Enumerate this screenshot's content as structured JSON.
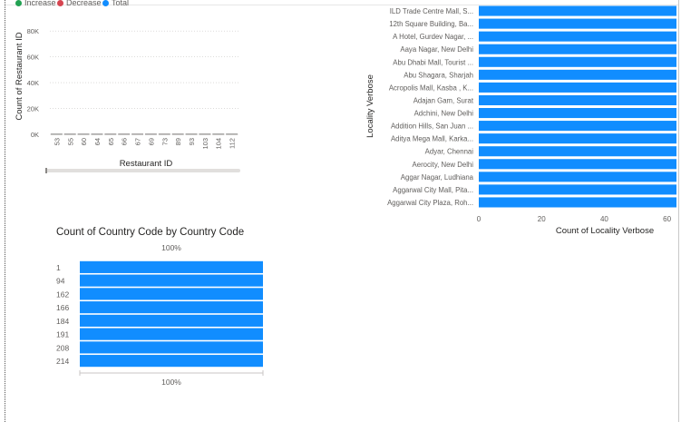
{
  "colors": {
    "increase": "#22a152",
    "decrease": "#d64550",
    "total": "#118dff",
    "bar": "#118dff",
    "grid": "#c8c6c4",
    "text": "#605e5c",
    "title": "#252423"
  },
  "chart_data": [
    {
      "type": "bar",
      "subtype": "waterfall",
      "title": "",
      "legend": {
        "position": "top-left",
        "entries": [
          "Increase",
          "Decrease",
          "Total"
        ]
      },
      "xlabel": "Restaurant ID",
      "ylabel": "Count of Restaurant ID",
      "categories": [
        "53",
        "55",
        "60",
        "64",
        "65",
        "66",
        "67",
        "69",
        "73",
        "89",
        "93",
        "103",
        "104",
        "112"
      ],
      "values": [
        1,
        1,
        1,
        1,
        1,
        1,
        1,
        1,
        1,
        1,
        1,
        1,
        1,
        1
      ],
      "yticks": [
        "0K",
        "20K",
        "40K",
        "60K",
        "80K"
      ],
      "ylim": [
        0,
        90000
      ],
      "grid": true
    },
    {
      "type": "bar",
      "orientation": "horizontal",
      "title": "",
      "xlabel": "Count of Locality Verbose",
      "ylabel": "Locality Verbose",
      "categories": [
        "ILD Trade Centre Mall, S...",
        "12th Square Building, Ba...",
        "A Hotel, Gurdev Nagar, ...",
        "Aaya Nagar, New Delhi",
        "Abu Dhabi Mall, Tourist ...",
        "Abu Shagara, Sharjah",
        "Acropolis Mall, Kasba , K...",
        "Adajan Gam, Surat",
        "Adchini, New Delhi",
        "Addition Hills, San Juan ...",
        "Aditya Mega Mall, Karka...",
        "Adyar, Chennai",
        "Aerocity, New Delhi",
        "Aggar Nagar, Ludhiana",
        "Aggarwal City Mall, Pita...",
        "Aggarwal City Plaza, Roh..."
      ],
      "values": [
        63,
        63,
        63,
        63,
        63,
        63,
        63,
        63,
        63,
        63,
        63,
        63,
        63,
        63,
        63,
        63
      ],
      "xticks": [
        "0",
        "20",
        "40",
        "60"
      ],
      "xlim": [
        0,
        63
      ],
      "grid": false
    },
    {
      "type": "bar",
      "subtype": "100% stacked",
      "orientation": "horizontal",
      "title": "Count of Country Code by Country Code",
      "categories": [
        "1",
        "94",
        "162",
        "166",
        "184",
        "191",
        "208",
        "214"
      ],
      "values": [
        100,
        100,
        100,
        100,
        100,
        100,
        100,
        100
      ],
      "top_label": "100%",
      "bottom_label": "100%",
      "grid": false
    }
  ]
}
